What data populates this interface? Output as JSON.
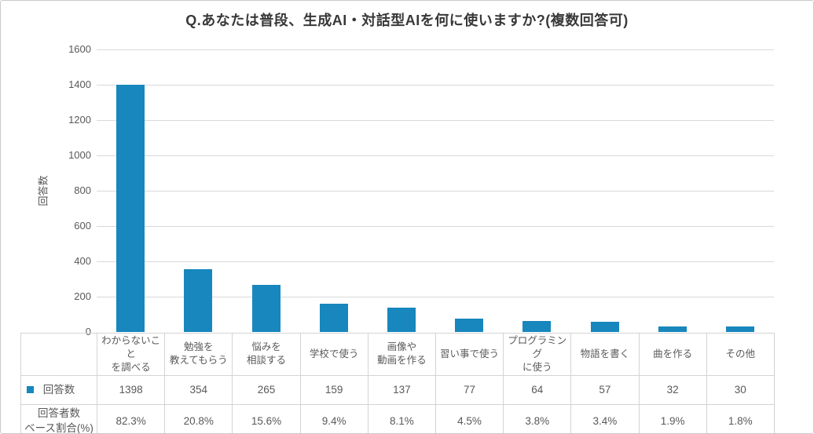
{
  "title": "Q.あなたは普段、生成AI・対話型AIを何に使いますか?(複数回答可)",
  "colors": {
    "bar": "#1787bd",
    "grid": "#d9d9d9",
    "axis_text": "#595959",
    "title_text": "#383838",
    "frame_border": "#c9c9c9",
    "table_border": "#d4d4d4"
  },
  "table": {
    "row1_label": "回答数",
    "row2_label_lines": [
      "回答者数",
      "ベース割合(%)"
    ]
  },
  "chart_data": {
    "type": "bar",
    "title": "Q.あなたは普段、生成AI・対話型AIを何に使いますか?(複数回答可)",
    "xlabel": "",
    "ylabel": "回答数",
    "ylim": [
      0,
      1600
    ],
    "yticks": [
      0,
      200,
      400,
      600,
      800,
      1000,
      1200,
      1400,
      1600
    ],
    "grid": true,
    "legend_position": "table-left",
    "bar_color": "#1787bd",
    "categories": [
      "わからないことを調べる",
      "勉強を教えてもらう",
      "悩みを相談する",
      "学校で使う",
      "画像や動画を作る",
      "習い事で使う",
      "プログラミングに使う",
      "物語を書く",
      "曲を作る",
      "その他"
    ],
    "category_label_lines": [
      [
        "わからないこと",
        "を調べる"
      ],
      [
        "勉強を",
        "教えてもらう"
      ],
      [
        "悩みを",
        "相談する"
      ],
      [
        "学校で使う"
      ],
      [
        "画像や",
        "動画を作る"
      ],
      [
        "習い事で使う"
      ],
      [
        "プログラミング",
        "に使う"
      ],
      [
        "物語を書く"
      ],
      [
        "曲を作る"
      ],
      [
        "その他"
      ]
    ],
    "series": [
      {
        "name": "回答数",
        "values": [
          1398,
          354,
          265,
          159,
          137,
          77,
          64,
          57,
          32,
          30
        ]
      },
      {
        "name": "回答者数ベース割合(%)",
        "values_text": [
          "82.3%",
          "20.8%",
          "15.6%",
          "9.4%",
          "8.1%",
          "4.5%",
          "3.8%",
          "3.4%",
          "1.9%",
          "1.8%"
        ]
      }
    ]
  }
}
